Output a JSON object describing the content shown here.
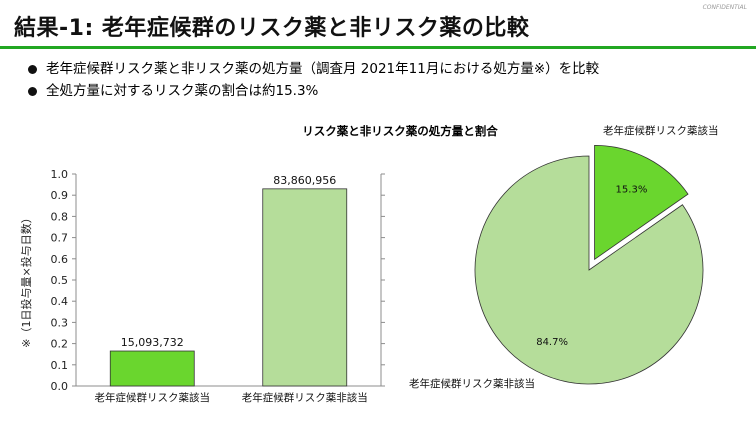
{
  "header": {
    "title": "結果-1: 老年症候群のリスク薬と非リスク薬の比較",
    "confidential": "CONFIDENTIAL",
    "accent_color": "#22a722"
  },
  "bullets": [
    "老年症候群リスク薬と非リスク薬の処方量（調査月 2021年11月における処方量※）を比較",
    "全処方量に対するリスク薬の割合は約15.3%"
  ],
  "chart_data": [
    {
      "type": "bar",
      "title": "リスク薬と非リスク薬の処方量と割合",
      "ylabel": "※（1日投与量×投与日数）",
      "categories": [
        "老年症候群リスク薬該当",
        "老年症候群リスク薬非該当"
      ],
      "values": [
        15093732,
        83860956
      ],
      "data_labels": [
        "15,093,732",
        "83,860,956"
      ],
      "ylim": [
        0,
        1.0
      ],
      "yticks": [
        "0.0",
        "0.1",
        "0.2",
        "0.3",
        "0.4",
        "0.5",
        "0.6",
        "0.7",
        "0.8",
        "0.9",
        "1.0"
      ],
      "bar_fractions": [
        0.165,
        0.93
      ],
      "colors": [
        "#6ad62e",
        "#b5dd9a"
      ],
      "grid": false
    },
    {
      "type": "pie",
      "labels": [
        "老年症候群リスク薬該当",
        "老年症候群リスク薬非該当"
      ],
      "values": [
        15.3,
        84.7
      ],
      "data_labels": [
        "15.3%",
        "84.7%"
      ],
      "colors": [
        "#6ad62e",
        "#b5dd9a"
      ],
      "exploded": "老年症候群リスク薬該当"
    }
  ]
}
